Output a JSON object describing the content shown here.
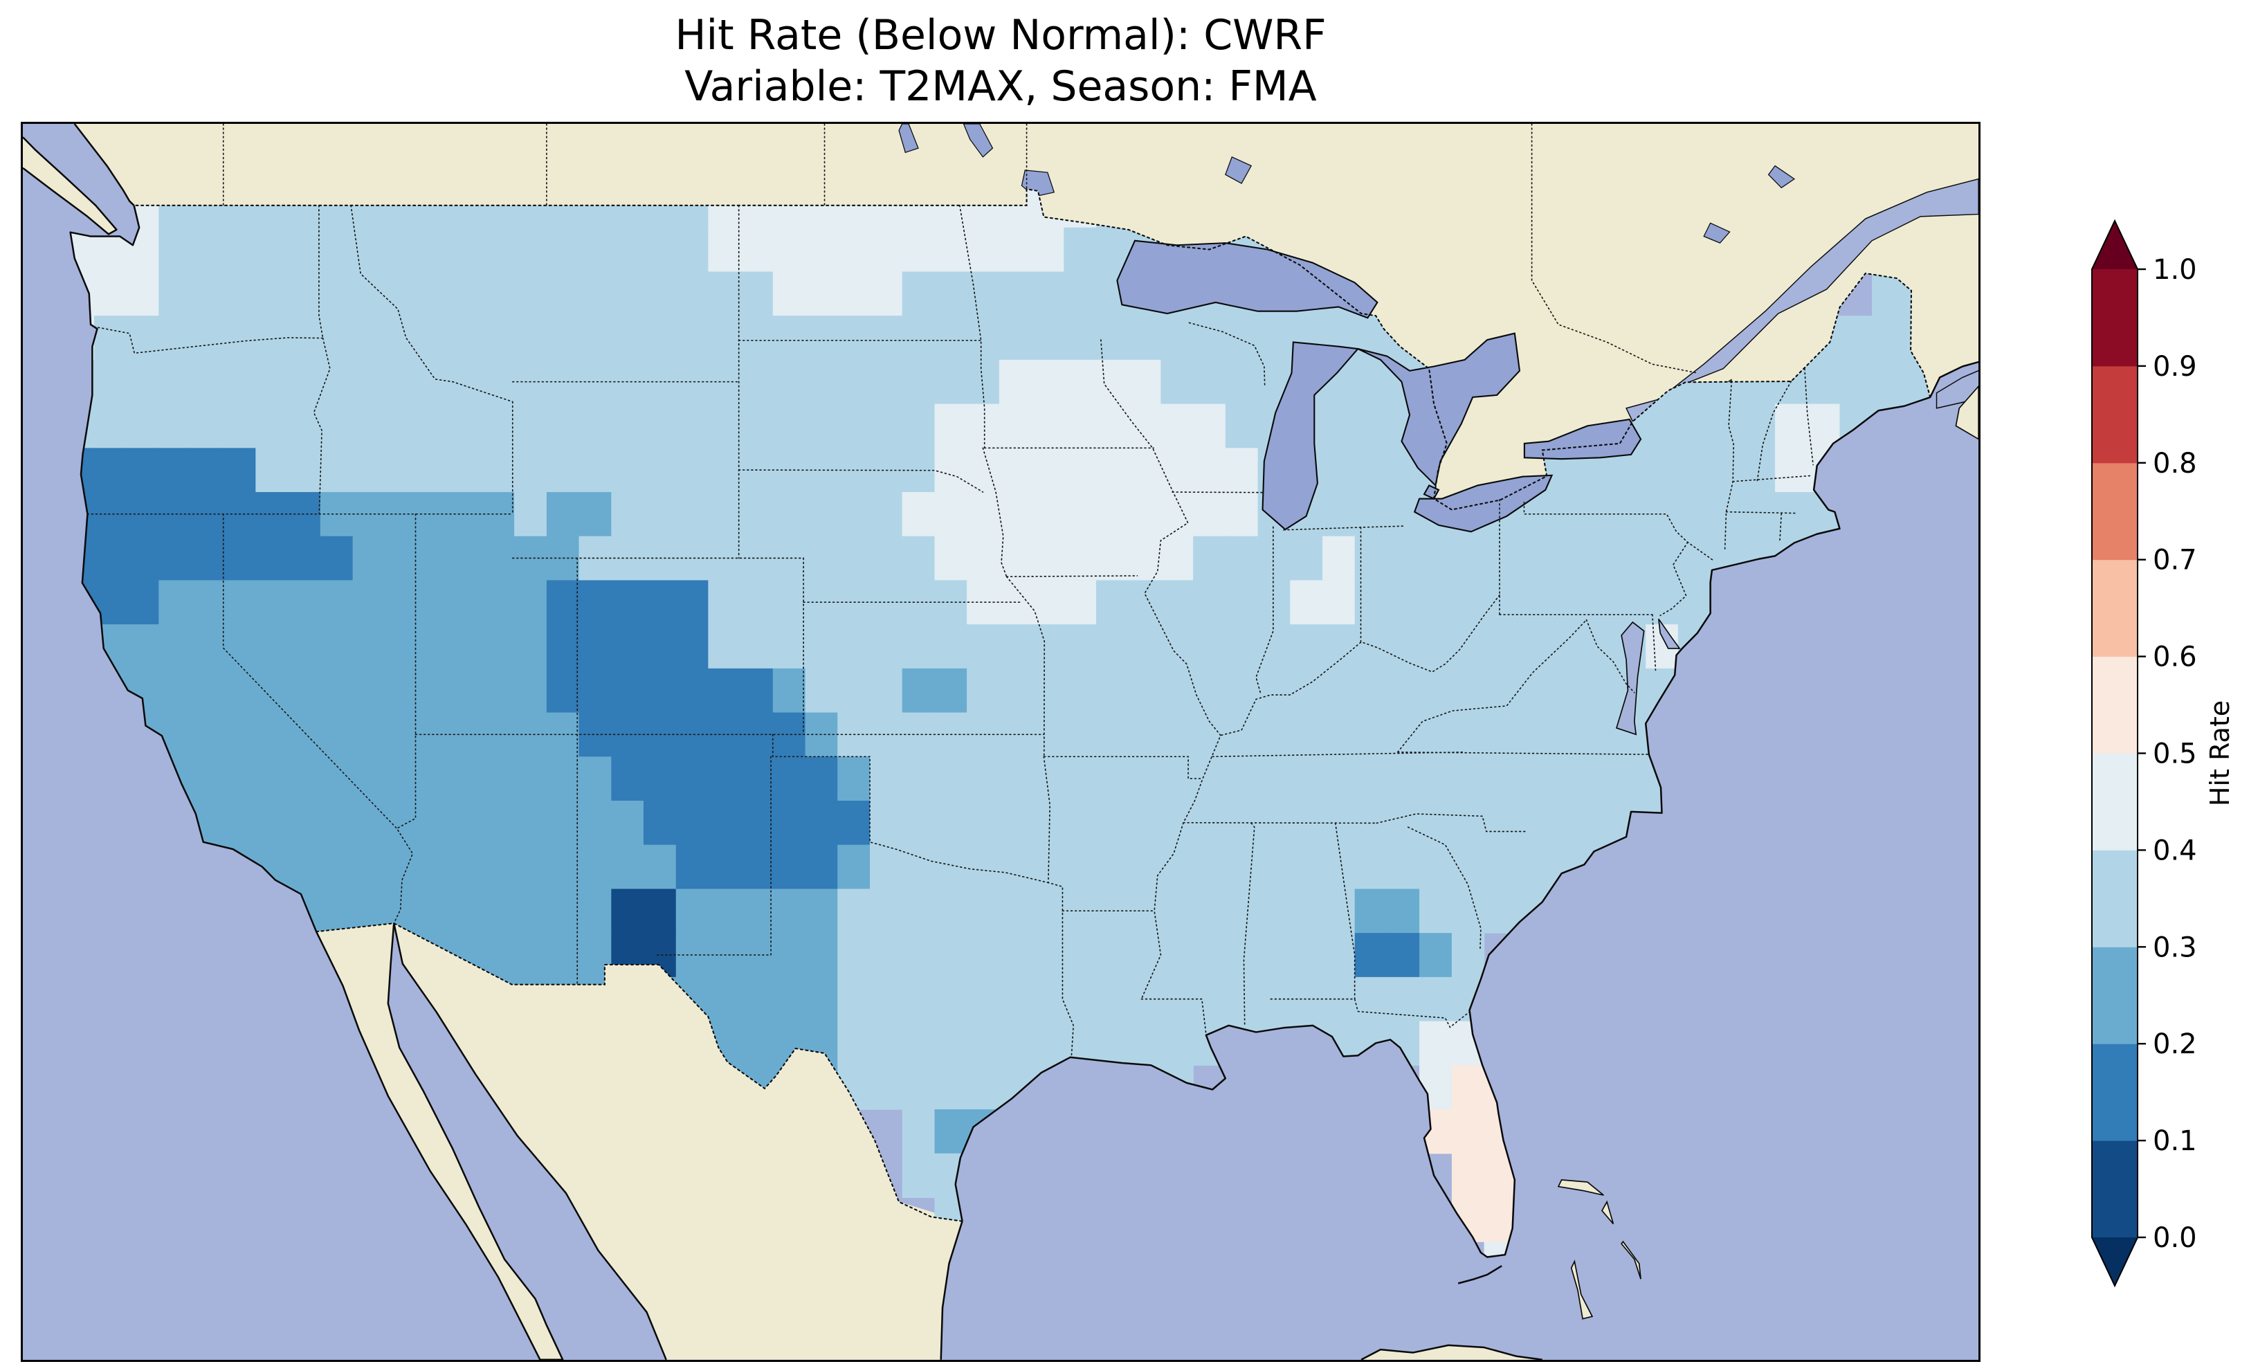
{
  "title": {
    "line1": "Hit Rate (Below Normal): CWRF",
    "line2": "Variable: T2MAX, Season: FMA"
  },
  "colorbar": {
    "label": "Hit Rate",
    "ticks": [
      "1.0",
      "0.9",
      "0.8",
      "0.7",
      "0.6",
      "0.5",
      "0.4",
      "0.3",
      "0.2",
      "0.1",
      "0.0"
    ],
    "bin_colors": [
      "#134b86",
      "#327cb7",
      "#6aacd0",
      "#b1d5e7",
      "#e4eef3",
      "#fae9df",
      "#f8c0a4",
      "#e58267",
      "#c43c3c",
      "#8c0c25"
    ],
    "under_arrow_color": "#053061",
    "over_arrow_color": "#67001f"
  },
  "map_colors": {
    "ocean": "#a6b3db",
    "land": "#eeebd2",
    "lake": "#92a3d4",
    "coastline": "#0a0a0a",
    "state_border": "#1a1a1a"
  },
  "chart_data": {
    "type": "heatmap",
    "title": "Hit Rate (Below Normal): CWRF",
    "subtitle": "Variable: T2MAX, Season: FMA",
    "metric": "Hit Rate (Below Normal)",
    "model": "CWRF",
    "variable": "T2MAX",
    "season": "FMA",
    "region": "Continental United States",
    "colorbar_label": "Hit Rate",
    "value_range": [
      0.0,
      1.0
    ],
    "bin_edges": [
      0.0,
      0.1,
      0.2,
      0.3,
      0.4,
      0.5,
      0.6,
      0.7,
      0.8,
      0.9,
      1.0
    ],
    "legend_position": "right",
    "grid": {
      "encoding": "run-length rows 'binDigit:count' top-to-bottom; digit d = hit rate in [d/10,(d+1)/10); '.' = outside CONUS data mask; 1-degree cells",
      "lon_min": -125,
      "lon_max": -66,
      "lat_min": 23.5,
      "lat_max": 49.5,
      "cell_deg": 1,
      "rows_rle": [
        "4:3,3:17,4:12,3:11,.:16",
        "4:3,3:17,4:11,3:12,.:16",
        "4:3,3:19,4:4,3:17,.:13,3:2,.:1",
        "4:1,3:42,.:11,3:5",
        "3:29,4:5,3:9,.:6,3:10",
        "3:27,4:9,3:7,.:3,3:7,4:2,3:4",
        "1:6,3:21,4:10,3:6,.:2,3:8,4:2,3:2,.:2",
        "1:8,2:6,3:1,2:2,3:9,4:11,3:19,.:3",
        "1:9,2:7,3:11,4:8,3:4,4:1,3:14,.:5",
        "1:3,2:12,1:5,3:8,4:4,3:6,4:2,3:12,.:7",
        ".:1,2:14,1:5,3:29,4:1,3:1,.:8",
        ".:1,2:14,1:7,2:1,3:3,2:2,3:22,.:9",
        ".:2,2:14,1:7,2:1,3:26,.:9",
        ".:3,2:14,1:7,2:1,3:25,.:9",
        ".:4,2:14,1:7,3:25,.:9",
        ".:5,2:14,1:5,2:1,3:24,.:10",
        ".:7,2:10,0:2,2:5,3:16,2:2,3:5,.:12",
        ".:8,2:9,0:2,2:5,3:16,1:2,2:1,3:1,.:15",
        ".:9,2:15,3:21,.:14",
        ".:19,2:5,3:18,4:3,.:14",
        ".:20,2:4,3:11,.:7,4:1,5:2,.:14",
        ".:26,3:1,2:2,3:1,.:12,5:3,.:14",
        ".:26,3:2,.:15,5:2,.:14",
        ".:27,3:2,.:14,5:2,.:14",
        ".:44,4:2,.:13",
        ".:59"
      ]
    },
    "regional_summary": [
      {
        "region": "Pacific Northwest coast (W Washington)",
        "hit_rate": "0.4-0.5"
      },
      {
        "region": "N California / S Oregon / NW Nevada",
        "hit_rate": "0.1-0.2"
      },
      {
        "region": "Great Basin & Southwest (CA, NV, UT, AZ, NM, W TX)",
        "hit_rate": "0.2-0.3"
      },
      {
        "region": "E Utah / Colorado / NE New Mexico / TX-OK panhandles",
        "hit_rate": "0.1-0.2"
      },
      {
        "region": "SW New Mexico core",
        "hit_rate": "0.0-0.1"
      },
      {
        "region": "Central and Eastern US (most areas)",
        "hit_rate": "0.3-0.4"
      },
      {
        "region": "Upper Midwest (MN, IA, WI, N IL, N MO) and N Dakota border",
        "hit_rate": "0.4-0.5"
      },
      {
        "region": "Central Georgia spot",
        "hit_rate": "0.1-0.3"
      },
      {
        "region": "South Texas coast spot",
        "hit_rate": "0.2-0.3"
      },
      {
        "region": "Florida peninsula",
        "hit_rate": "0.5-0.6"
      }
    ]
  }
}
